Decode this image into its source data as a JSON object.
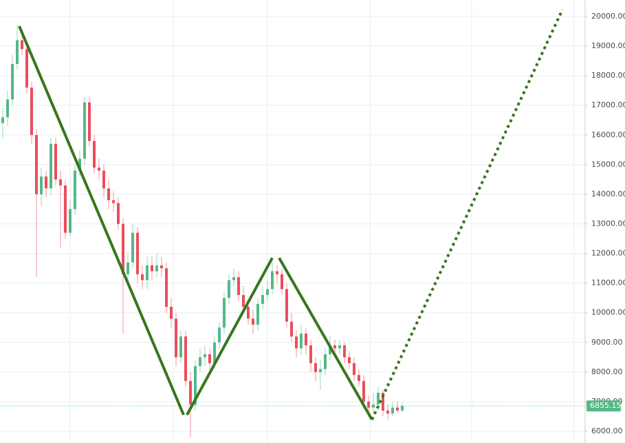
{
  "chart_data": {
    "type": "candlestick",
    "series": [
      {
        "up_color": "#53b987",
        "down_color": "#eb4d5c",
        "open": [
          16400,
          16600,
          17200,
          18400,
          19200,
          18900,
          17600,
          16000,
          14000,
          14600,
          14200,
          15700,
          14500,
          14300,
          12700,
          13500,
          14800,
          15200,
          17100,
          15800,
          14900,
          14800,
          14200,
          13800,
          13700,
          13000,
          11300,
          11700,
          12700,
          11300,
          11100,
          11600,
          11400,
          11600,
          11500,
          10200,
          9800,
          8500,
          9200,
          7700,
          6900,
          8200,
          8500,
          8600,
          8300,
          9000,
          9500,
          10500,
          11100,
          11200,
          10600,
          10200,
          9800,
          9600,
          10300,
          10600,
          10800,
          11400,
          11300,
          10800,
          9700,
          9200,
          8800,
          9300,
          8900,
          8300,
          8000,
          8100,
          8600,
          8900,
          8800,
          8900,
          8500,
          8300,
          7900,
          7700,
          7000,
          6800,
          6900,
          7300,
          6700,
          6600,
          6800,
          6700
        ],
        "high": [
          16900,
          17500,
          18700,
          19700,
          19500,
          19100,
          17800,
          16200,
          14900,
          14800,
          15900,
          15900,
          14800,
          14500,
          13800,
          15000,
          15500,
          17300,
          17300,
          16000,
          15200,
          15000,
          14500,
          14100,
          13900,
          13200,
          12000,
          13000,
          12900,
          11600,
          11900,
          11900,
          12000,
          11900,
          11700,
          10500,
          10000,
          9400,
          9400,
          8000,
          8400,
          8800,
          8900,
          8800,
          9200,
          9700,
          10700,
          11300,
          11500,
          11400,
          10900,
          10400,
          10100,
          10500,
          10900,
          11100,
          11700,
          11600,
          11500,
          11000,
          10000,
          9400,
          9600,
          9500,
          9100,
          8500,
          8400,
          8800,
          9200,
          9100,
          9100,
          9000,
          8700,
          8500,
          8100,
          7900,
          7200,
          7300,
          7500,
          7400,
          6900,
          7000,
          7000,
          6950
        ],
        "low": [
          15900,
          16300,
          17000,
          18200,
          18700,
          17400,
          15700,
          11200,
          13600,
          13900,
          14000,
          14300,
          12200,
          12500,
          12600,
          13300,
          14600,
          15000,
          15600,
          14700,
          14500,
          13900,
          13500,
          13400,
          12800,
          9300,
          11000,
          11500,
          11000,
          10800,
          10800,
          11100,
          11200,
          11200,
          10000,
          9500,
          8200,
          8300,
          7500,
          5800,
          6700,
          8000,
          8200,
          8100,
          8100,
          8800,
          9300,
          10300,
          10900,
          10400,
          10000,
          9600,
          9300,
          9400,
          10100,
          10400,
          10600,
          11000,
          10600,
          9500,
          9000,
          8500,
          8600,
          8600,
          8000,
          7700,
          7400,
          7900,
          8400,
          8500,
          8600,
          8300,
          8100,
          7700,
          7500,
          6800,
          6500,
          6600,
          6700,
          6500,
          6400,
          6500,
          6600,
          6650
        ],
        "close": [
          16600,
          17200,
          18400,
          19200,
          18900,
          17600,
          16000,
          14000,
          14600,
          14200,
          15700,
          14500,
          14300,
          12700,
          13500,
          14800,
          15200,
          17100,
          15800,
          14900,
          14800,
          14200,
          13800,
          13700,
          13000,
          11300,
          11700,
          12700,
          11300,
          11100,
          11600,
          11400,
          11600,
          11500,
          10200,
          9800,
          8500,
          9200,
          7700,
          6900,
          8200,
          8500,
          8600,
          8300,
          9000,
          9500,
          10500,
          11100,
          11200,
          10600,
          10200,
          9800,
          9600,
          10300,
          10600,
          10800,
          11400,
          11300,
          10800,
          9700,
          9200,
          8800,
          9300,
          8900,
          8300,
          8000,
          8100,
          8600,
          8900,
          8800,
          8900,
          8500,
          8300,
          7900,
          7700,
          7000,
          6800,
          6900,
          7300,
          6700,
          6600,
          6800,
          6700,
          6855.15
        ]
      }
    ],
    "ylim": [
      5605,
      20557
    ],
    "yticks": [
      {
        "value": 6000,
        "label": "6000.00"
      },
      {
        "value": 7000,
        "label": "7000.00"
      },
      {
        "value": 8000,
        "label": "8000.00"
      },
      {
        "value": 9000,
        "label": "9000.00"
      },
      {
        "value": 10000,
        "label": "10000.00"
      },
      {
        "value": 11000,
        "label": "11000.00"
      },
      {
        "value": 12000,
        "label": "12000.00"
      },
      {
        "value": 13000,
        "label": "13000.00"
      },
      {
        "value": 14000,
        "label": "14000.00"
      },
      {
        "value": 15000,
        "label": "15000.00"
      },
      {
        "value": 16000,
        "label": "16000.00"
      },
      {
        "value": 17000,
        "label": "17000.00"
      },
      {
        "value": 18000,
        "label": "18000.00"
      },
      {
        "value": 19000,
        "label": "19000.00"
      },
      {
        "value": 20000,
        "label": "20000.00"
      }
    ],
    "grid": true,
    "last_price": 6855.15,
    "last_price_color": "#53b987"
  }
}
